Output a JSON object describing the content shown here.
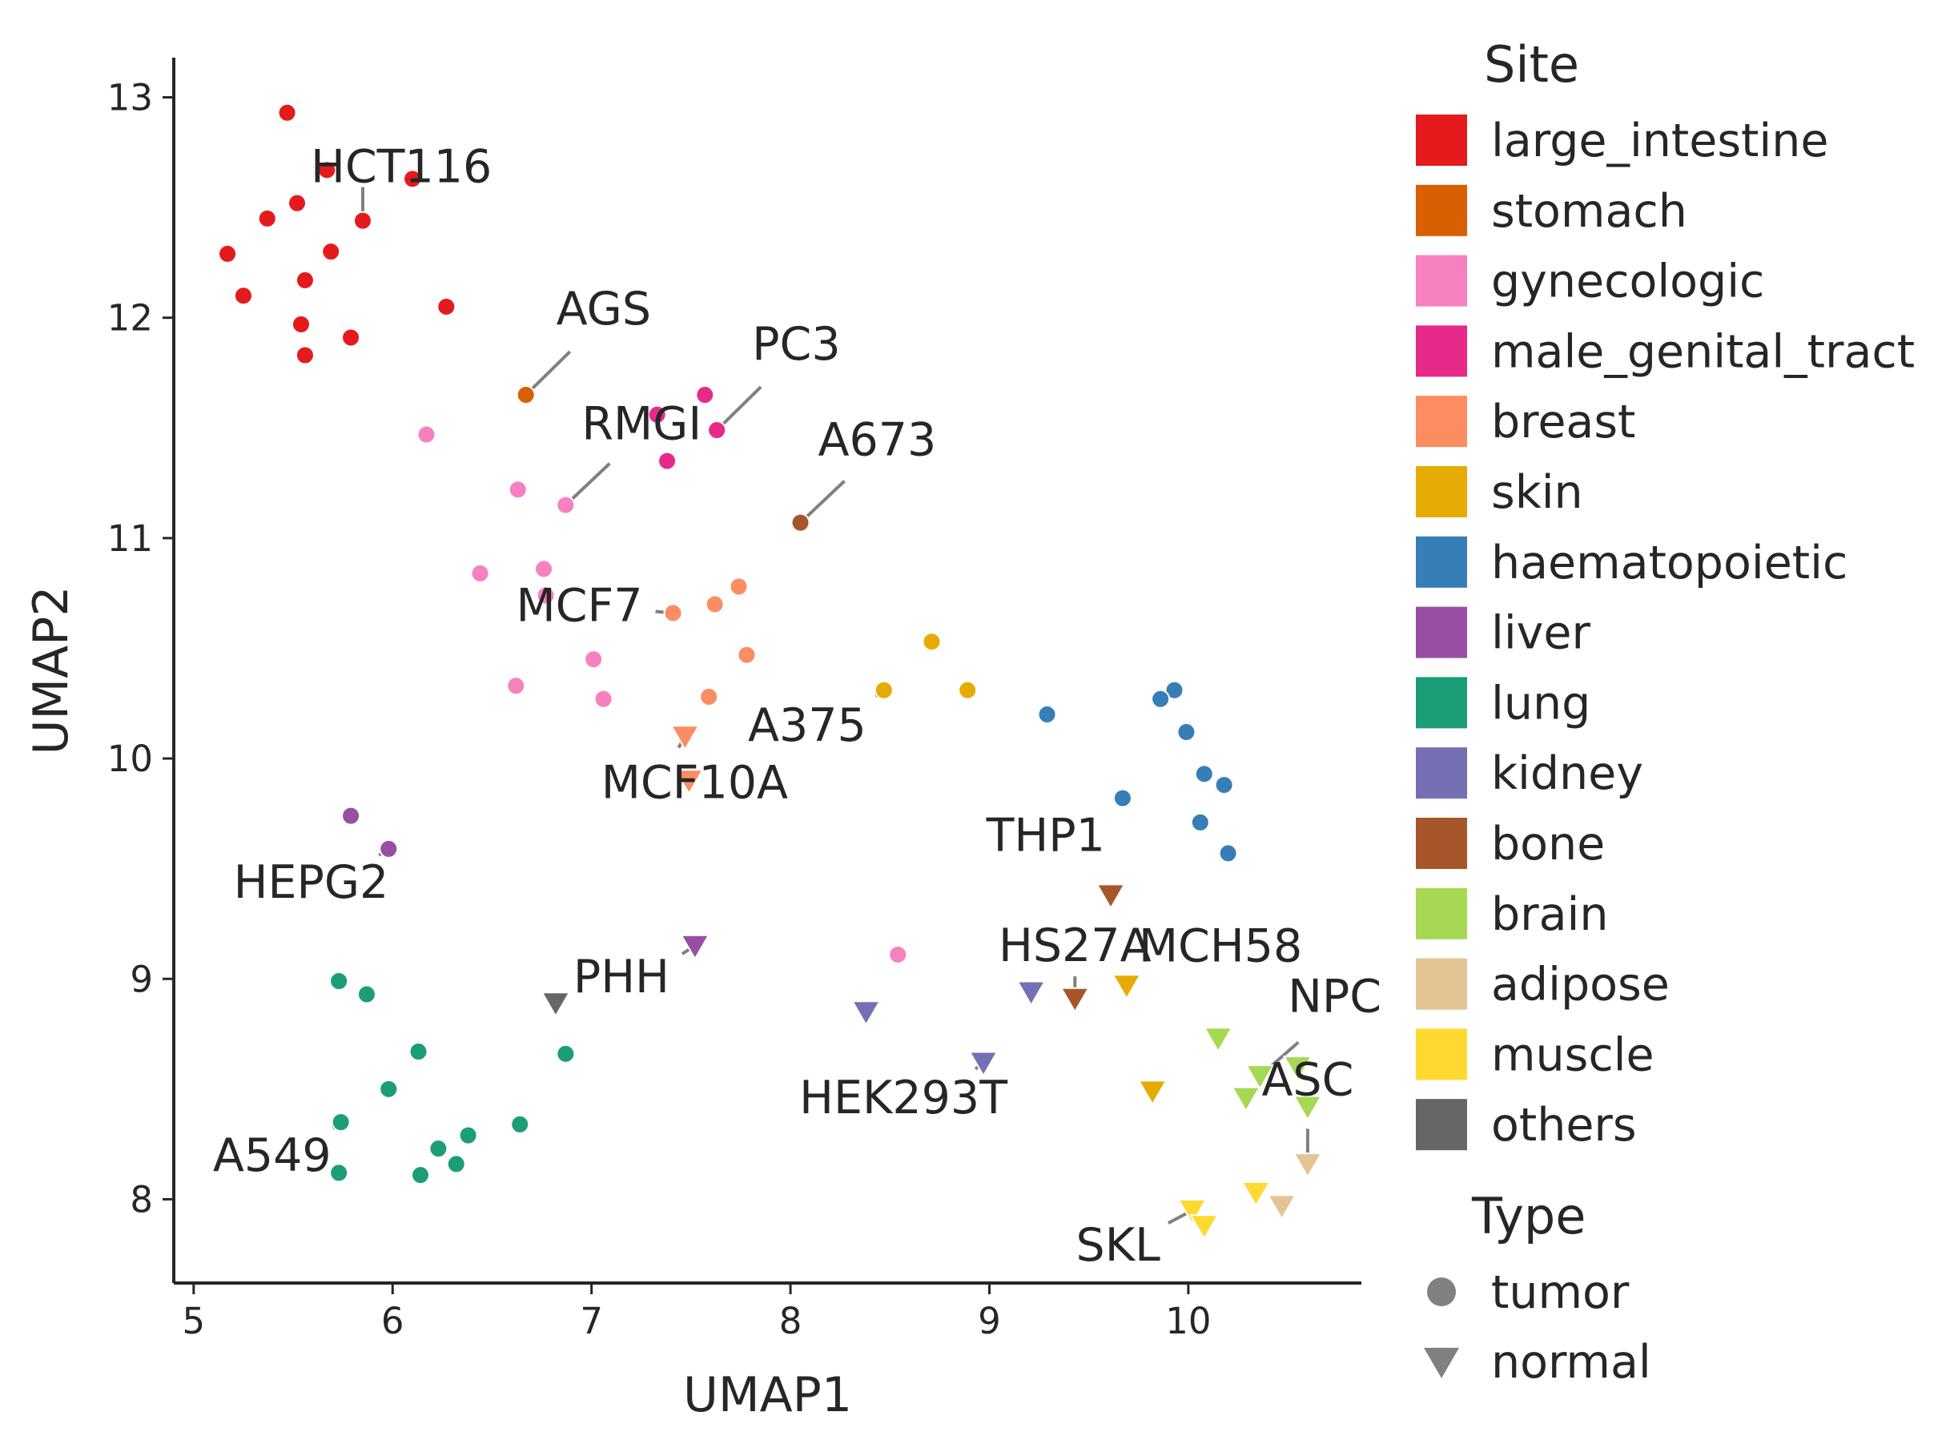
{
  "chart_data": {
    "type": "scatter",
    "xlabel": "UMAP1",
    "ylabel": "UMAP2",
    "xlim": [
      4.9,
      10.87
    ],
    "ylim": [
      7.62,
      13.18
    ],
    "xticks": [
      5,
      6,
      7,
      8,
      9,
      10
    ],
    "yticks": [
      8,
      9,
      10,
      11,
      12,
      13
    ],
    "grid": false,
    "legend_placement": "right, outside plot",
    "legend": {
      "site_title": "Site",
      "type_title": "Type",
      "sites": [
        {
          "key": "large_intestine",
          "label": "large_intestine",
          "color": "#e41a1c"
        },
        {
          "key": "stomach",
          "label": "stomach",
          "color": "#d95f02"
        },
        {
          "key": "gynecologic",
          "label": "gynecologic",
          "color": "#f781bf"
        },
        {
          "key": "male_genital_tract",
          "label": "male_genital_tract",
          "color": "#e7298a"
        },
        {
          "key": "breast",
          "label": "breast",
          "color": "#fc8d62"
        },
        {
          "key": "skin",
          "label": "skin",
          "color": "#e6ab02"
        },
        {
          "key": "haematopoietic",
          "label": "haematopoietic",
          "color": "#377eb8"
        },
        {
          "key": "liver",
          "label": "liver",
          "color": "#984ea3"
        },
        {
          "key": "lung",
          "label": "lung",
          "color": "#1b9e77"
        },
        {
          "key": "kidney",
          "label": "kidney",
          "color": "#7570b3"
        },
        {
          "key": "bone",
          "label": "bone",
          "color": "#a6562a"
        },
        {
          "key": "brain",
          "label": "brain",
          "color": "#a6d854"
        },
        {
          "key": "adipose",
          "label": "adipose",
          "color": "#e5c494"
        },
        {
          "key": "muscle",
          "label": "muscle",
          "color": "#ffd92f"
        },
        {
          "key": "others",
          "label": "others",
          "color": "#666666"
        }
      ],
      "types": [
        {
          "key": "tumor",
          "label": "tumor",
          "marker": "circle"
        },
        {
          "key": "normal",
          "label": "normal",
          "marker": "triangle-down"
        }
      ]
    },
    "series": [
      {
        "site": "large_intestine",
        "type": "tumor",
        "points": [
          [
            5.47,
            12.93
          ],
          [
            5.67,
            12.67
          ],
          [
            6.1,
            12.63
          ],
          [
            5.37,
            12.45
          ],
          [
            5.52,
            12.52
          ],
          [
            5.85,
            12.44
          ],
          [
            5.17,
            12.29
          ],
          [
            5.69,
            12.3
          ],
          [
            5.56,
            12.17
          ],
          [
            5.25,
            12.1
          ],
          [
            6.27,
            12.05
          ],
          [
            5.54,
            11.97
          ],
          [
            5.79,
            11.91
          ],
          [
            5.56,
            11.83
          ]
        ]
      },
      {
        "site": "stomach",
        "type": "tumor",
        "points": [
          [
            6.67,
            11.65
          ]
        ]
      },
      {
        "site": "gynecologic",
        "type": "tumor",
        "points": [
          [
            6.17,
            11.47
          ],
          [
            6.63,
            11.22
          ],
          [
            6.87,
            11.15
          ],
          [
            6.44,
            10.84
          ],
          [
            6.76,
            10.86
          ],
          [
            6.77,
            10.74
          ],
          [
            7.01,
            10.45
          ],
          [
            6.62,
            10.33
          ],
          [
            7.06,
            10.27
          ],
          [
            8.54,
            9.11
          ]
        ]
      },
      {
        "site": "male_genital_tract",
        "type": "tumor",
        "points": [
          [
            7.57,
            11.65
          ],
          [
            7.33,
            11.56
          ],
          [
            7.63,
            11.49
          ],
          [
            7.38,
            11.35
          ]
        ]
      },
      {
        "site": "breast",
        "type": "tumor",
        "points": [
          [
            7.74,
            10.78
          ],
          [
            7.62,
            10.7
          ],
          [
            7.41,
            10.66
          ],
          [
            7.78,
            10.47
          ],
          [
            7.59,
            10.28
          ]
        ]
      },
      {
        "site": "breast",
        "type": "normal",
        "points": [
          [
            7.47,
            10.1
          ],
          [
            7.49,
            9.9
          ]
        ]
      },
      {
        "site": "skin",
        "type": "tumor",
        "points": [
          [
            8.71,
            10.53
          ],
          [
            8.47,
            10.31
          ],
          [
            8.89,
            10.31
          ]
        ]
      },
      {
        "site": "skin",
        "type": "normal",
        "points": [
          [
            9.69,
            8.97
          ],
          [
            9.82,
            8.49
          ]
        ]
      },
      {
        "site": "haematopoietic",
        "type": "tumor",
        "points": [
          [
            9.93,
            10.31
          ],
          [
            9.86,
            10.27
          ],
          [
            9.99,
            10.12
          ],
          [
            9.29,
            10.2
          ],
          [
            10.08,
            9.93
          ],
          [
            10.18,
            9.88
          ],
          [
            9.67,
            9.82
          ],
          [
            10.06,
            9.71
          ],
          [
            10.2,
            9.57
          ]
        ]
      },
      {
        "site": "bone",
        "type": "tumor",
        "points": [
          [
            8.05,
            11.07
          ]
        ]
      },
      {
        "site": "bone",
        "type": "normal",
        "points": [
          [
            9.61,
            9.38
          ],
          [
            9.43,
            8.91
          ]
        ]
      },
      {
        "site": "liver",
        "type": "tumor",
        "points": [
          [
            5.79,
            9.74
          ],
          [
            5.98,
            9.59
          ]
        ]
      },
      {
        "site": "liver",
        "type": "normal",
        "points": [
          [
            7.52,
            9.15
          ]
        ]
      },
      {
        "site": "others",
        "type": "normal",
        "points": [
          [
            6.82,
            8.89
          ]
        ]
      },
      {
        "site": "lung",
        "type": "tumor",
        "points": [
          [
            5.73,
            8.99
          ],
          [
            5.87,
            8.93
          ],
          [
            6.13,
            8.67
          ],
          [
            6.87,
            8.66
          ],
          [
            5.98,
            8.5
          ],
          [
            5.74,
            8.35
          ],
          [
            6.64,
            8.34
          ],
          [
            6.38,
            8.29
          ],
          [
            6.23,
            8.23
          ],
          [
            6.32,
            8.16
          ],
          [
            5.73,
            8.12
          ],
          [
            6.14,
            8.11
          ]
        ]
      },
      {
        "site": "kidney",
        "type": "normal",
        "points": [
          [
            9.21,
            8.94
          ],
          [
            8.38,
            8.85
          ],
          [
            8.97,
            8.62
          ]
        ]
      },
      {
        "site": "brain",
        "type": "normal",
        "points": [
          [
            10.15,
            8.73
          ],
          [
            10.55,
            8.6
          ],
          [
            10.36,
            8.56
          ],
          [
            10.29,
            8.46
          ],
          [
            10.6,
            8.42
          ]
        ]
      },
      {
        "site": "adipose",
        "type": "normal",
        "points": [
          [
            10.6,
            8.16
          ],
          [
            10.47,
            7.97
          ]
        ]
      },
      {
        "site": "muscle",
        "type": "normal",
        "points": [
          [
            10.02,
            7.95
          ],
          [
            10.08,
            7.88
          ],
          [
            10.34,
            8.03
          ]
        ]
      }
    ],
    "annotations": [
      {
        "label": "HCT116",
        "point": [
          5.85,
          12.44
        ]
      },
      {
        "label": "AGS",
        "point": [
          6.67,
          11.65
        ]
      },
      {
        "label": "PC3",
        "point": [
          7.63,
          11.49
        ]
      },
      {
        "label": "RMGI",
        "point": [
          6.87,
          11.15
        ]
      },
      {
        "label": "A673",
        "point": [
          8.05,
          11.07
        ]
      },
      {
        "label": "MCF7",
        "point": [
          7.41,
          10.66
        ]
      },
      {
        "label": "A375",
        "point": [
          8.47,
          10.31
        ]
      },
      {
        "label": "MCF10A",
        "point": [
          7.47,
          10.1
        ]
      },
      {
        "label": "THP1",
        "point": [
          9.67,
          9.82
        ]
      },
      {
        "label": "HEPG2",
        "point": [
          5.98,
          9.59
        ]
      },
      {
        "label": "HS27A",
        "point": [
          9.43,
          8.91
        ]
      },
      {
        "label": "MCH58",
        "point": [
          9.69,
          8.97
        ]
      },
      {
        "label": "PHH",
        "point": [
          7.52,
          9.15
        ]
      },
      {
        "label": "NPC",
        "point": [
          10.36,
          8.56
        ]
      },
      {
        "label": "HEK293T",
        "point": [
          8.97,
          8.62
        ]
      },
      {
        "label": "ASC",
        "point": [
          10.6,
          8.16
        ]
      },
      {
        "label": "A549",
        "point": [
          5.74,
          8.35
        ]
      },
      {
        "label": "SKL",
        "point": [
          10.02,
          7.95
        ]
      }
    ]
  }
}
